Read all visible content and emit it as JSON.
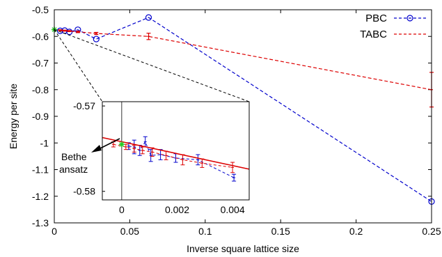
{
  "chart_data": [
    {
      "type": "line",
      "title": "",
      "xlabel": "Inverse square lattice size",
      "ylabel": "Energy per site",
      "xlim": [
        0,
        0.25
      ],
      "ylim": [
        -1.3,
        -0.5
      ],
      "x_ticks": [
        "0",
        "0.05",
        "0.1",
        "0.15",
        "0.2",
        "0.25"
      ],
      "y_ticks": [
        "-0.5",
        "-0.6",
        "-0.7",
        "-0.8",
        "-0.9",
        "-1",
        "-1.1",
        "-1.2",
        "-1.3"
      ],
      "legend_position": "top-right",
      "series": [
        {
          "name": "PBC",
          "color": "#0000cc",
          "style": "dashed",
          "marker": "circle",
          "points": [
            {
              "x": 0.0039,
              "y": -0.5791
            },
            {
              "x": 0.0069,
              "y": -0.5782
            },
            {
              "x": 0.01,
              "y": -0.583
            },
            {
              "x": 0.0156,
              "y": -0.575
            },
            {
              "x": 0.0278,
              "y": -0.61
            },
            {
              "x": 0.0625,
              "y": -0.529
            },
            {
              "x": 0.25,
              "y": -1.22
            }
          ]
        },
        {
          "name": "TABC",
          "color": "#dd0000",
          "style": "dashed",
          "marker": "errorbar",
          "points": [
            {
              "x": 0.0039,
              "y": -0.577,
              "err": 0.002
            },
            {
              "x": 0.0069,
              "y": -0.5785,
              "err": 0.002
            },
            {
              "x": 0.01,
              "y": -0.58,
              "err": 0.002
            },
            {
              "x": 0.0156,
              "y": -0.583,
              "err": 0.003
            },
            {
              "x": 0.0278,
              "y": -0.589,
              "err": 0.004
            },
            {
              "x": 0.0625,
              "y": -0.6,
              "err": 0.012
            },
            {
              "x": 0.25,
              "y": -0.8,
              "err": 0.065
            }
          ]
        },
        {
          "name": "",
          "color": "#22cc22",
          "marker": "star",
          "points": [
            {
              "x": 0,
              "y": -0.5745
            }
          ]
        }
      ]
    },
    {
      "type": "line",
      "title": "",
      "inset": true,
      "xlim": [
        -0.0007,
        0.0046
      ],
      "ylim": [
        -0.581,
        -0.5695
      ],
      "x_ticks": [
        "0",
        "0.002",
        "0.004"
      ],
      "y_ticks": [
        "-0.57",
        "-0.58"
      ],
      "annotation": [
        "Bethe",
        "ansatz"
      ],
      "series": [
        {
          "name": "PBC",
          "color": "#0000cc",
          "style": "dashed",
          "points": [
            {
              "x": 0.00025,
              "y": -0.5747,
              "err": 0.0004
            },
            {
              "x": 0.00045,
              "y": -0.5748,
              "err": 0.0008
            },
            {
              "x": 0.00065,
              "y": -0.5752,
              "err": 0.0006
            },
            {
              "x": 0.00085,
              "y": -0.5742,
              "err": 0.0006
            },
            {
              "x": 0.00105,
              "y": -0.5758,
              "err": 0.0007
            },
            {
              "x": 0.0014,
              "y": -0.5757,
              "err": 0.0006
            },
            {
              "x": 0.00195,
              "y": -0.5761,
              "err": 0.0005
            },
            {
              "x": 0.00275,
              "y": -0.5763,
              "err": 0.0006
            },
            {
              "x": 0.00405,
              "y": -0.5784,
              "err": 0.0004
            }
          ]
        },
        {
          "name": "TABC",
          "color": "#dd0000",
          "style": "dashed",
          "points": [
            {
              "x": -0.0003,
              "y": -0.5745,
              "err": 0.0003
            },
            {
              "x": 0.00015,
              "y": -0.5748,
              "err": 0.0003
            },
            {
              "x": 0.00045,
              "y": -0.575,
              "err": 0.0004
            },
            {
              "x": 0.00075,
              "y": -0.5752,
              "err": 0.0004
            },
            {
              "x": 0.0011,
              "y": -0.5754,
              "err": 0.0005
            },
            {
              "x": 0.0016,
              "y": -0.5758,
              "err": 0.0005
            },
            {
              "x": 0.0022,
              "y": -0.5763,
              "err": 0.0006
            },
            {
              "x": 0.0029,
              "y": -0.5767,
              "err": 0.0005
            },
            {
              "x": 0.004,
              "y": -0.5772,
              "err": 0.0006
            }
          ]
        },
        {
          "name": "",
          "color": "#dd0000",
          "style": "solid",
          "fit": true,
          "points": [
            {
              "x": -0.0007,
              "y": -0.5737
            },
            {
              "x": 0.0046,
              "y": -0.5774
            }
          ]
        },
        {
          "name": "",
          "color": "#22cc22",
          "marker": "star",
          "points": [
            {
              "x": 0,
              "y": -0.5745
            }
          ]
        }
      ]
    }
  ]
}
